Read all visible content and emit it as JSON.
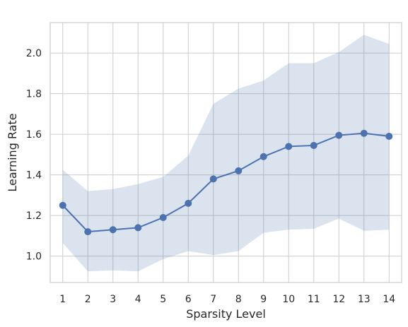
{
  "chart_data": {
    "type": "line",
    "title": "",
    "xlabel": "Sparsity Level",
    "ylabel": "Learning Rate",
    "x": [
      1,
      2,
      3,
      4,
      5,
      6,
      7,
      8,
      9,
      10,
      11,
      12,
      13,
      14
    ],
    "xticks": [
      "1",
      "2",
      "3",
      "4",
      "5",
      "6",
      "7",
      "8",
      "9",
      "10",
      "11",
      "12",
      "13",
      "14"
    ],
    "yticks": [
      "1.0",
      "1.2",
      "1.4",
      "1.6",
      "1.8",
      "2.0"
    ],
    "xlim": [
      0.5,
      14.5
    ],
    "ylim": [
      0.87,
      2.15
    ],
    "grid": true,
    "series": [
      {
        "values": [
          1.25,
          1.12,
          1.13,
          1.14,
          1.19,
          1.26,
          1.38,
          1.42,
          1.49,
          1.54,
          1.545,
          1.595,
          1.605,
          1.59
        ],
        "lower": [
          1.065,
          0.925,
          0.93,
          0.925,
          0.985,
          1.025,
          1.005,
          1.025,
          1.115,
          1.13,
          1.135,
          1.185,
          1.125,
          1.13
        ],
        "upper": [
          1.425,
          1.32,
          1.33,
          1.355,
          1.39,
          1.495,
          1.75,
          1.825,
          1.865,
          1.95,
          1.95,
          2.005,
          2.09,
          2.045
        ],
        "color": "#4c72b0",
        "band_color": "#4c72b0"
      }
    ]
  }
}
